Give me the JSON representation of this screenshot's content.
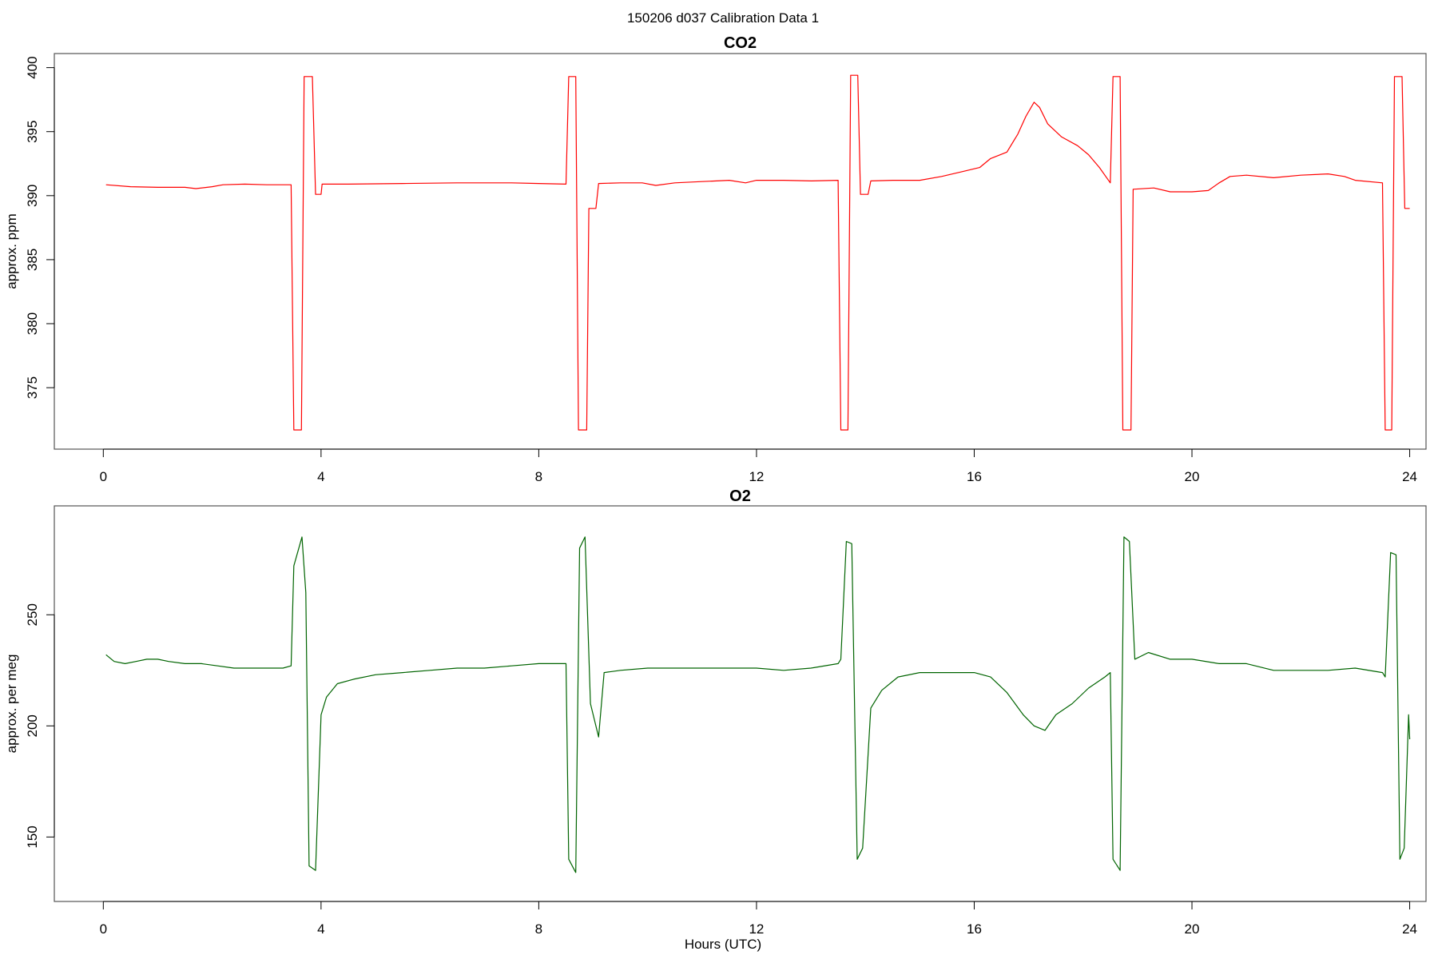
{
  "figure": {
    "suptitle": "150206   d037   Calibration Data 1",
    "xlabel": "Hours (UTC)"
  },
  "chart_data": [
    {
      "type": "line",
      "title": "CO2",
      "xlabel": "",
      "ylabel": "approx. ppm",
      "xlim": [
        -0.9,
        24.3
      ],
      "ylim": [
        370.2,
        401.1
      ],
      "xticks": [
        0,
        4,
        8,
        12,
        16,
        20,
        24
      ],
      "yticks": [
        375,
        380,
        385,
        390,
        395,
        400
      ],
      "grid": false,
      "color": "#ff0000",
      "series": [
        {
          "points": [
            [
              0.05,
              390.85
            ],
            [
              0.5,
              390.7
            ],
            [
              1.0,
              390.65
            ],
            [
              1.5,
              390.65
            ],
            [
              1.7,
              390.55
            ],
            [
              2.0,
              390.7
            ],
            [
              2.2,
              390.85
            ],
            [
              2.6,
              390.9
            ],
            [
              3.0,
              390.85
            ],
            [
              3.45,
              390.85
            ],
            [
              3.5,
              371.7
            ],
            [
              3.64,
              371.7
            ],
            [
              3.69,
              399.3
            ],
            [
              3.84,
              399.3
            ],
            [
              3.9,
              390.1
            ],
            [
              4.0,
              390.1
            ],
            [
              4.02,
              390.9
            ],
            [
              4.5,
              390.9
            ],
            [
              5.5,
              390.95
            ],
            [
              6.5,
              391.0
            ],
            [
              7.5,
              391.0
            ],
            [
              8.0,
              390.95
            ],
            [
              8.5,
              390.9
            ],
            [
              8.55,
              399.3
            ],
            [
              8.68,
              399.3
            ],
            [
              8.73,
              371.7
            ],
            [
              8.88,
              371.7
            ],
            [
              8.92,
              389.0
            ],
            [
              9.05,
              389.0
            ],
            [
              9.1,
              390.95
            ],
            [
              9.5,
              391.0
            ],
            [
              9.9,
              391.0
            ],
            [
              10.15,
              390.8
            ],
            [
              10.5,
              391.0
            ],
            [
              11.0,
              391.1
            ],
            [
              11.5,
              391.2
            ],
            [
              11.8,
              391.0
            ],
            [
              12.0,
              391.2
            ],
            [
              12.5,
              391.2
            ],
            [
              13.0,
              391.15
            ],
            [
              13.5,
              391.2
            ],
            [
              13.55,
              371.7
            ],
            [
              13.68,
              371.7
            ],
            [
              13.73,
              399.4
            ],
            [
              13.86,
              399.4
            ],
            [
              13.91,
              390.1
            ],
            [
              14.05,
              390.1
            ],
            [
              14.1,
              391.15
            ],
            [
              14.5,
              391.2
            ],
            [
              15.0,
              391.2
            ],
            [
              15.4,
              391.5
            ],
            [
              15.8,
              391.9
            ],
            [
              16.1,
              392.2
            ],
            [
              16.3,
              392.9
            ],
            [
              16.6,
              393.4
            ],
            [
              16.8,
              394.8
            ],
            [
              16.95,
              396.2
            ],
            [
              17.1,
              397.3
            ],
            [
              17.2,
              396.9
            ],
            [
              17.35,
              395.6
            ],
            [
              17.6,
              394.6
            ],
            [
              17.9,
              393.9
            ],
            [
              18.1,
              393.2
            ],
            [
              18.3,
              392.2
            ],
            [
              18.5,
              391.0
            ],
            [
              18.55,
              399.3
            ],
            [
              18.68,
              399.3
            ],
            [
              18.73,
              371.7
            ],
            [
              18.88,
              371.7
            ],
            [
              18.92,
              390.5
            ],
            [
              19.3,
              390.6
            ],
            [
              19.6,
              390.3
            ],
            [
              20.0,
              390.3
            ],
            [
              20.3,
              390.4
            ],
            [
              20.5,
              391.0
            ],
            [
              20.7,
              391.5
            ],
            [
              21.0,
              391.6
            ],
            [
              21.5,
              391.4
            ],
            [
              22.0,
              391.6
            ],
            [
              22.5,
              391.7
            ],
            [
              22.8,
              391.5
            ],
            [
              23.0,
              391.2
            ],
            [
              23.5,
              391.0
            ],
            [
              23.55,
              371.7
            ],
            [
              23.67,
              371.7
            ],
            [
              23.72,
              399.3
            ],
            [
              23.86,
              399.3
            ],
            [
              23.91,
              389.0
            ],
            [
              24.0,
              389.0
            ]
          ]
        }
      ]
    },
    {
      "type": "line",
      "title": "O2",
      "xlabel": "Hours (UTC)",
      "ylabel": "approx. per meg",
      "xlim": [
        -0.9,
        24.3
      ],
      "ylim": [
        121,
        299
      ],
      "xticks": [
        0,
        4,
        8,
        12,
        16,
        20,
        24
      ],
      "yticks": [
        150,
        200,
        250
      ],
      "grid": false,
      "color": "#006400",
      "series": [
        {
          "points": [
            [
              0.05,
              232
            ],
            [
              0.2,
              229
            ],
            [
              0.4,
              228
            ],
            [
              0.6,
              229
            ],
            [
              0.8,
              230
            ],
            [
              1.0,
              230
            ],
            [
              1.2,
              229
            ],
            [
              1.5,
              228
            ],
            [
              1.8,
              228
            ],
            [
              2.1,
              227
            ],
            [
              2.4,
              226
            ],
            [
              2.7,
              226
            ],
            [
              3.0,
              226
            ],
            [
              3.3,
              226
            ],
            [
              3.45,
              227
            ],
            [
              3.5,
              272
            ],
            [
              3.65,
              285
            ],
            [
              3.72,
              260
            ],
            [
              3.78,
              137
            ],
            [
              3.9,
              135
            ],
            [
              4.0,
              205
            ],
            [
              4.1,
              213
            ],
            [
              4.3,
              219
            ],
            [
              4.6,
              221
            ],
            [
              5.0,
              223
            ],
            [
              5.5,
              224
            ],
            [
              6.0,
              225
            ],
            [
              6.5,
              226
            ],
            [
              7.0,
              226
            ],
            [
              7.5,
              227
            ],
            [
              8.0,
              228
            ],
            [
              8.4,
              228
            ],
            [
              8.5,
              228
            ],
            [
              8.55,
              140
            ],
            [
              8.68,
              134
            ],
            [
              8.75,
              280
            ],
            [
              8.85,
              285
            ],
            [
              8.95,
              210
            ],
            [
              9.1,
              195
            ],
            [
              9.2,
              224
            ],
            [
              9.5,
              225
            ],
            [
              10.0,
              226
            ],
            [
              10.5,
              226
            ],
            [
              11.0,
              226
            ],
            [
              11.5,
              226
            ],
            [
              12.0,
              226
            ],
            [
              12.5,
              225
            ],
            [
              13.0,
              226
            ],
            [
              13.5,
              228
            ],
            [
              13.55,
              230
            ],
            [
              13.65,
              283
            ],
            [
              13.75,
              282
            ],
            [
              13.85,
              140
            ],
            [
              13.95,
              145
            ],
            [
              14.1,
              208
            ],
            [
              14.3,
              216
            ],
            [
              14.6,
              222
            ],
            [
              15.0,
              224
            ],
            [
              15.5,
              224
            ],
            [
              16.0,
              224
            ],
            [
              16.3,
              222
            ],
            [
              16.6,
              215
            ],
            [
              16.9,
              205
            ],
            [
              17.1,
              200
            ],
            [
              17.3,
              198
            ],
            [
              17.5,
              205
            ],
            [
              17.8,
              210
            ],
            [
              18.1,
              217
            ],
            [
              18.4,
              222
            ],
            [
              18.5,
              224
            ],
            [
              18.55,
              140
            ],
            [
              18.68,
              135
            ],
            [
              18.75,
              285
            ],
            [
              18.85,
              283
            ],
            [
              18.95,
              230
            ],
            [
              19.2,
              233
            ],
            [
              19.6,
              230
            ],
            [
              20.0,
              230
            ],
            [
              20.5,
              228
            ],
            [
              21.0,
              228
            ],
            [
              21.5,
              225
            ],
            [
              22.0,
              225
            ],
            [
              22.5,
              225
            ],
            [
              23.0,
              226
            ],
            [
              23.5,
              224
            ],
            [
              23.55,
              222
            ],
            [
              23.65,
              278
            ],
            [
              23.75,
              277
            ],
            [
              23.82,
              140
            ],
            [
              23.9,
              145
            ],
            [
              23.98,
              205
            ],
            [
              24.0,
              194
            ]
          ]
        }
      ]
    }
  ]
}
